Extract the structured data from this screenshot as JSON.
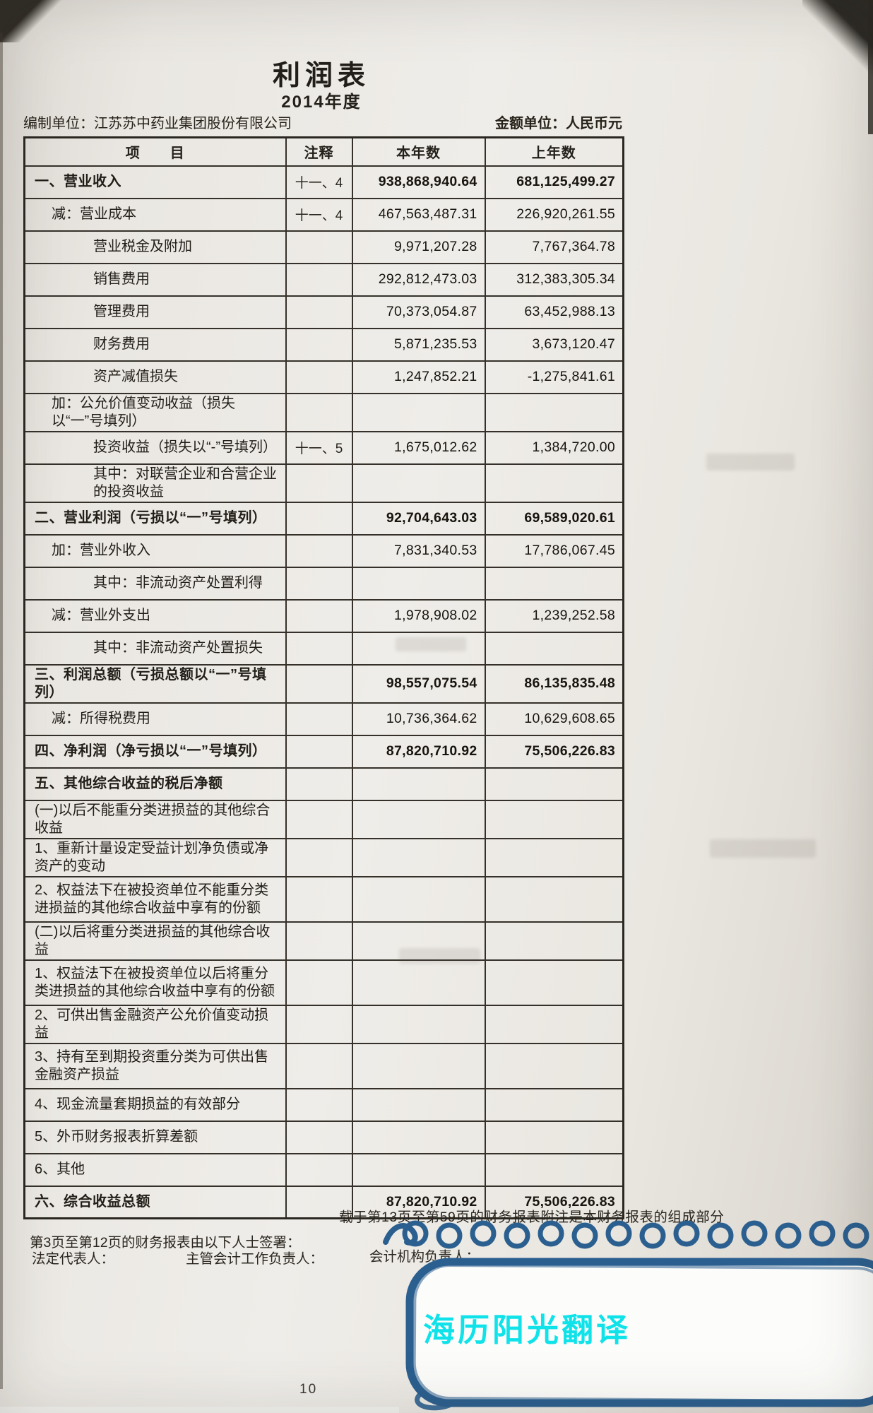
{
  "page": {
    "title": "利润表",
    "period": "2014年度",
    "prepared_by": "编制单位：江苏苏中药业集团股份有限公司",
    "currency_unit": "金额单位：人民币元",
    "page_number": "10"
  },
  "table": {
    "headers": {
      "item": "项　　目",
      "note": "注释",
      "current": "本年数",
      "prior": "上年数"
    },
    "rows": [
      {
        "item": "一、营业收入",
        "note": "十一、4",
        "current": "938,868,940.64",
        "prior": "681,125,499.27",
        "level": 0,
        "bold": true
      },
      {
        "item": "减：营业成本",
        "note": "十一、4",
        "current": "467,563,487.31",
        "prior": "226,920,261.55",
        "level": 1
      },
      {
        "item": "营业税金及附加",
        "note": "",
        "current": "9,971,207.28",
        "prior": "7,767,364.78",
        "level": 2
      },
      {
        "item": "销售费用",
        "note": "",
        "current": "292,812,473.03",
        "prior": "312,383,305.34",
        "level": 2
      },
      {
        "item": "管理费用",
        "note": "",
        "current": "70,373,054.87",
        "prior": "63,452,988.13",
        "level": 2
      },
      {
        "item": "财务费用",
        "note": "",
        "current": "5,871,235.53",
        "prior": "3,673,120.47",
        "level": 2
      },
      {
        "item": "资产减值损失",
        "note": "",
        "current": "1,247,852.21",
        "prior": "-1,275,841.61",
        "level": 2
      },
      {
        "item": "加：公允价值变动收益（损失以“一”号填列）",
        "note": "",
        "current": "",
        "prior": "",
        "level": 1
      },
      {
        "item": "投资收益（损失以“-”号填列）",
        "note": "十一、5",
        "current": "1,675,012.62",
        "prior": "1,384,720.00",
        "level": 2
      },
      {
        "item": "其中：对联营企业和合营企业的投资收益",
        "note": "",
        "current": "",
        "prior": "",
        "level": 2
      },
      {
        "item": "二、营业利润（亏损以“一”号填列）",
        "note": "",
        "current": "92,704,643.03",
        "prior": "69,589,020.61",
        "level": 0,
        "bold": true
      },
      {
        "item": "加：营业外收入",
        "note": "",
        "current": "7,831,340.53",
        "prior": "17,786,067.45",
        "level": 1
      },
      {
        "item": "其中：非流动资产处置利得",
        "note": "",
        "current": "",
        "prior": "",
        "level": 2
      },
      {
        "item": "减：营业外支出",
        "note": "",
        "current": "1,978,908.02",
        "prior": "1,239,252.58",
        "level": 1
      },
      {
        "item": "其中：非流动资产处置损失",
        "note": "",
        "current": "",
        "prior": "",
        "level": 2
      },
      {
        "item": "三、利润总额（亏损总额以“一”号填列）",
        "note": "",
        "current": "98,557,075.54",
        "prior": "86,135,835.48",
        "level": 0,
        "bold": true
      },
      {
        "item": "减：所得税费用",
        "note": "",
        "current": "10,736,364.62",
        "prior": "10,629,608.65",
        "level": 1
      },
      {
        "item": "四、净利润（净亏损以“一”号填列）",
        "note": "",
        "current": "87,820,710.92",
        "prior": "75,506,226.83",
        "level": 0,
        "bold": true
      },
      {
        "item": "五、其他综合收益的税后净额",
        "note": "",
        "current": "",
        "prior": "",
        "level": 0,
        "bold": true
      },
      {
        "item": "(一)以后不能重分类进损益的其他综合收益",
        "note": "",
        "current": "",
        "prior": "",
        "level": 3
      },
      {
        "item": "1、重新计量设定受益计划净负债或净资产的变动",
        "note": "",
        "current": "",
        "prior": "",
        "level": 3
      },
      {
        "item": "2、权益法下在被投资单位不能重分类进损益的其他综合收益中享有的份额",
        "note": "",
        "current": "",
        "prior": "",
        "level": 3,
        "tall": true
      },
      {
        "item": "(二)以后将重分类进损益的其他综合收益",
        "note": "",
        "current": "",
        "prior": "",
        "level": 3
      },
      {
        "item": "1、权益法下在被投资单位以后将重分类进损益的其他综合收益中享有的份额",
        "note": "",
        "current": "",
        "prior": "",
        "level": 3,
        "tall": true
      },
      {
        "item": "2、可供出售金融资产公允价值变动损益",
        "note": "",
        "current": "",
        "prior": "",
        "level": 3
      },
      {
        "item": "3、持有至到期投资重分类为可供出售金融资产损益",
        "note": "",
        "current": "",
        "prior": "",
        "level": 3,
        "tall": true
      },
      {
        "item": "4、现金流量套期损益的有效部分",
        "note": "",
        "current": "",
        "prior": "",
        "level": 3
      },
      {
        "item": "5、外币财务报表折算差额",
        "note": "",
        "current": "",
        "prior": "",
        "level": 3
      },
      {
        "item": "6、其他",
        "note": "",
        "current": "",
        "prior": "",
        "level": 3
      },
      {
        "item": "六、综合收益总额",
        "note": "",
        "current": "87,820,710.92",
        "prior": "75,506,226.83",
        "level": 0,
        "bold": true
      }
    ]
  },
  "footer": {
    "note1": "载于第13页至第59页的财务报表附注是本财务报表的组成部分",
    "note2": "第3页至第12页的财务报表由以下人士签署：",
    "sign1": "法定代表人：",
    "sign2": "主管会计工作负责人：",
    "sign3": "会计机构负责人："
  },
  "watermark": {
    "text": "海历阳光翻译",
    "text_color": "#10e2ea",
    "stroke_color": "#2b5f8f"
  },
  "colors": {
    "paper": "#eae7e2",
    "ink": "#1f1c17",
    "table_border": "#35312a"
  }
}
